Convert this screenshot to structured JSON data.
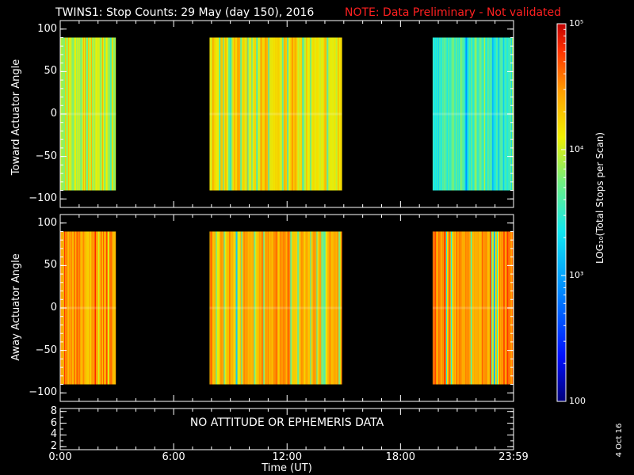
{
  "title": {
    "main": "TWINS1: Stop Counts: 29 May (day 150), 2016",
    "note": "NOTE: Data Preliminary - Not validated",
    "note_color": "#ff2020"
  },
  "footer_date": "4 Oct 16",
  "no_data_message": "NO ATTITUDE OR EPHEMERIS DATA",
  "chart_data": [
    {
      "type": "heatmap",
      "panel": "toward",
      "ylabel": "Toward Actuator Angle",
      "ylim": [
        -110,
        110
      ],
      "yticks": [
        100,
        50,
        0,
        -50,
        -100
      ],
      "ytick_labels": [
        "100",
        "50",
        "0",
        "−50",
        "−100"
      ],
      "angle_range": [
        -90,
        90
      ],
      "x_unit": "hours UT",
      "xlim": [
        0,
        23.98
      ],
      "data_intervals": [
        {
          "start": 0.0,
          "end": 2.95,
          "log10_counts": 3.9,
          "min": 3.4,
          "max": 4.7
        },
        {
          "start": 7.9,
          "end": 14.9,
          "log10_counts": 4.15,
          "min": 2.75,
          "max": 4.75
        },
        {
          "start": 19.7,
          "end": 23.98,
          "log10_counts": 3.55,
          "min": 2.75,
          "max": 4.3
        }
      ]
    },
    {
      "type": "heatmap",
      "panel": "away",
      "ylabel": "Away Actuator Angle",
      "ylim": [
        -110,
        110
      ],
      "yticks": [
        100,
        50,
        0,
        -50,
        -100
      ],
      "ytick_labels": [
        "100",
        "50",
        "0",
        "−50",
        "−100"
      ],
      "angle_range": [
        -90,
        90
      ],
      "x_unit": "hours UT",
      "xlim": [
        0,
        23.98
      ],
      "data_intervals": [
        {
          "start": 0.0,
          "end": 2.95,
          "log10_counts": 4.45,
          "min": 3.6,
          "max": 4.95
        },
        {
          "start": 7.9,
          "end": 14.9,
          "log10_counts": 4.4,
          "min": 2.75,
          "max": 4.9
        },
        {
          "start": 19.7,
          "end": 23.98,
          "log10_counts": 4.5,
          "min": 2.6,
          "max": 4.95
        }
      ]
    },
    {
      "type": "line",
      "panel": "ephemeris",
      "ylim": [
        1.5,
        8.5
      ],
      "yticks": [
        8,
        6,
        4,
        2
      ],
      "ytick_labels": [
        "8",
        "6",
        "4",
        "2"
      ],
      "xticks": [
        0,
        6,
        12,
        18,
        23.98
      ],
      "xtick_labels": [
        "0:00",
        "6:00",
        "12:00",
        "18:00",
        "23:59"
      ],
      "xlabel": "Time (UT)"
    }
  ],
  "colorbar": {
    "label": "LOG₁₀(Total Stops per Scan)",
    "scale": "log",
    "range": [
      100,
      100000
    ],
    "ticks": [
      {
        "value": 100000,
        "label": "10⁵"
      },
      {
        "value": 10000,
        "label": "10⁴"
      },
      {
        "value": 1000,
        "label": "10³"
      },
      {
        "value": 100,
        "label": "100"
      }
    ]
  }
}
